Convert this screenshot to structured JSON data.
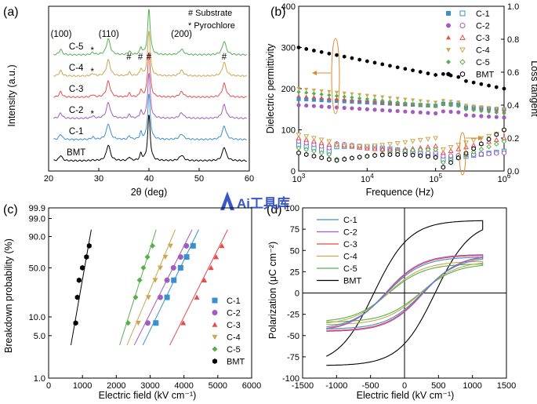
{
  "watermark": {
    "logo_text": "Ai工具库",
    "color": "#3a57c8"
  },
  "chart_data": [
    {
      "panel": "(a)",
      "type": "line",
      "xlabel": "2θ (deg)",
      "ylabel": "Intensity (a.u.)",
      "xlim": [
        20,
        60
      ],
      "xticks": [
        20,
        30,
        40,
        50,
        60
      ],
      "legend": {
        "items": [
          "# Substrate",
          "* Pyrochlore"
        ]
      },
      "peak_labels": [
        {
          "text": "(100)",
          "x": 22.5
        },
        {
          "text": "(110)",
          "x": 32.0
        },
        {
          "text": "#",
          "x": 36.0
        },
        {
          "text": "#",
          "x": 38.3
        },
        {
          "text": "#",
          "x": 40.0
        },
        {
          "text": "(200)",
          "x": 46.5
        },
        {
          "text": "#",
          "x": 55.0
        }
      ],
      "pyrochlore_markers": [
        {
          "series": "C-5",
          "x": 28.7
        },
        {
          "series": "C-4",
          "x": 28.7
        },
        {
          "series": "C-2",
          "x": 28.7
        }
      ],
      "series": [
        {
          "name": "C-5",
          "color": "#55b04c",
          "offset": 5
        },
        {
          "name": "C-4",
          "color": "#c9a84f",
          "offset": 4
        },
        {
          "name": "C-3",
          "color": "#e84b4b",
          "offset": 3
        },
        {
          "name": "C-2",
          "color": "#a25cc0",
          "offset": 2
        },
        {
          "name": "C-1",
          "color": "#3a8fd0",
          "offset": 1
        },
        {
          "name": "BMT",
          "color": "#000000",
          "offset": 0
        }
      ],
      "peaks": [
        {
          "x": 22.4,
          "h": 0.12,
          "w": 0.35
        },
        {
          "x": 28.8,
          "h": 0.05,
          "w": 0.35
        },
        {
          "x": 31.9,
          "h": 0.35,
          "w": 0.45
        },
        {
          "x": 36.1,
          "h": 0.08,
          "w": 0.25
        },
        {
          "x": 38.4,
          "h": 0.15,
          "w": 0.25
        },
        {
          "x": 40.0,
          "h": 1.0,
          "w": 0.3
        },
        {
          "x": 46.5,
          "h": 0.12,
          "w": 0.5
        },
        {
          "x": 55.0,
          "h": 0.3,
          "w": 0.45
        }
      ]
    },
    {
      "panel": "(b)",
      "type": "scatter",
      "xlabel": "Frequence (Hz)",
      "ylabel": "Dielectric permittivity",
      "y2label": "Loss tangent",
      "xscale": "log",
      "xlim": [
        1000,
        1000000
      ],
      "xticks": [
        "10^3",
        "10^4",
        "10^5",
        "10^6"
      ],
      "ylim": [
        0,
        400
      ],
      "yticks": [
        0,
        100,
        200,
        300,
        400
      ],
      "y2lim": [
        0.0,
        1.0
      ],
      "y2ticks": [
        "0.0",
        "0.2",
        "0.4",
        "0.6",
        "0.8",
        "1.0"
      ],
      "legend_position": "top-right",
      "series": [
        {
          "name": "C-1",
          "color": "#3a8fd0",
          "marker": "square",
          "eps": [
            175,
            150
          ],
          "tan": [
            0.12,
            0.12
          ]
        },
        {
          "name": "C-2",
          "color": "#a25cc0",
          "marker": "circle",
          "eps": [
            160,
            130
          ],
          "tan": [
            0.14,
            0.11
          ]
        },
        {
          "name": "C-3",
          "color": "#e84b4b",
          "marker": "triangle-up",
          "eps": [
            182,
            145
          ],
          "tan": [
            0.16,
            0.2
          ]
        },
        {
          "name": "C-4",
          "color": "#c9a84f",
          "marker": "triangle-down",
          "eps": [
            200,
            150
          ],
          "tan": [
            0.18,
            0.24
          ]
        },
        {
          "name": "C-5",
          "color": "#55b04c",
          "marker": "diamond",
          "eps": [
            192,
            140
          ],
          "tan": [
            0.1,
            0.18
          ]
        },
        {
          "name": "BMT",
          "color": "#000000",
          "marker": "hexagon",
          "eps": [
            300,
            200
          ],
          "tan": [
            0.07,
            0.25
          ]
        }
      ]
    },
    {
      "panel": "(c)",
      "type": "scatter",
      "xlabel": "Electric field (kV cm⁻¹)",
      "ylabel": "Breakdown probability (%)",
      "xlim": [
        0,
        6000
      ],
      "xticks": [
        0,
        1000,
        2000,
        3000,
        4000,
        5000,
        6000
      ],
      "yscale": "weibull",
      "yticks": [
        "1.0",
        "5.0",
        "10.0",
        "50.0",
        "90.0",
        "99.0",
        "99.9"
      ],
      "legend_position": "bottom-right",
      "series": [
        {
          "name": "C-1",
          "color": "#3a8fd0",
          "marker": "square",
          "x": [
            3170,
            3500,
            3700,
            3900,
            4080,
            4270
          ]
        },
        {
          "name": "C-2",
          "color": "#a25cc0",
          "marker": "circle",
          "x": [
            2930,
            3300,
            3500,
            3690,
            3900,
            4070
          ]
        },
        {
          "name": "C-3",
          "color": "#e84b4b",
          "marker": "triangle-up",
          "x": [
            3980,
            4380,
            4600,
            4800,
            4950,
            5120
          ]
        },
        {
          "name": "C-4",
          "color": "#c9a84f",
          "marker": "triangle-down",
          "x": [
            2650,
            2950,
            3150,
            3300,
            3450,
            3600
          ]
        },
        {
          "name": "C-5",
          "color": "#55b04c",
          "marker": "diamond",
          "x": [
            2350,
            2570,
            2690,
            2800,
            2920,
            3070
          ]
        },
        {
          "name": "BMT",
          "color": "#000000",
          "marker": "hexagon",
          "x": [
            800,
            850,
            900,
            1000,
            1120,
            1200
          ]
        }
      ]
    },
    {
      "panel": "(d)",
      "type": "line",
      "xlabel": "Electric field (kV cm⁻¹)",
      "ylabel": "Polarization (μC cm⁻²)",
      "xlim": [
        -1500,
        1500
      ],
      "xticks": [
        -1500,
        -1000,
        -500,
        0,
        500,
        1000,
        1500
      ],
      "ylim": [
        -100,
        100
      ],
      "yticks": [
        -100,
        -75,
        -50,
        -25,
        0,
        25,
        50,
        75,
        100
      ],
      "legend_position": "top-left",
      "series": [
        {
          "name": "C-1",
          "color": "#3a8fd0",
          "emax": 1150,
          "pmax": 42,
          "pr": 4,
          "ec": 260
        },
        {
          "name": "C-2",
          "color": "#a25cc0",
          "emax": 1150,
          "pmax": 45,
          "pr": 5,
          "ec": 280
        },
        {
          "name": "C-3",
          "color": "#e84b4b",
          "emax": 1150,
          "pmax": 44,
          "pr": 5,
          "ec": 270
        },
        {
          "name": "C-4",
          "color": "#c9a84f",
          "emax": 1150,
          "pmax": 37,
          "pr": 3,
          "ec": 240
        },
        {
          "name": "C-5",
          "color": "#55b04c",
          "emax": 1150,
          "pmax": 34,
          "pr": 3,
          "ec": 230
        },
        {
          "name": "BMT",
          "color": "#000000",
          "emax": 1150,
          "pmax": 85,
          "pr": 25,
          "ec": 450
        }
      ]
    }
  ]
}
